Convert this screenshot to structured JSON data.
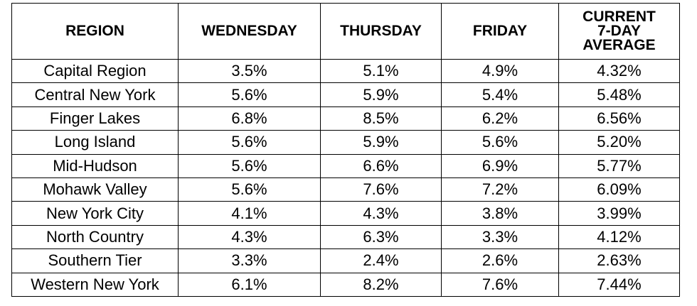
{
  "table": {
    "headers": [
      "REGION",
      "WEDNESDAY",
      "THURSDAY",
      "FRIDAY",
      "CURRENT\n7-DAY\nAVERAGE"
    ],
    "rows": [
      [
        "Capital Region",
        "3.5%",
        "5.1%",
        "4.9%",
        "4.32%"
      ],
      [
        "Central New York",
        "5.6%",
        "5.9%",
        "5.4%",
        "5.48%"
      ],
      [
        "Finger Lakes",
        "6.8%",
        "8.5%",
        "6.2%",
        "6.56%"
      ],
      [
        "Long Island",
        "5.6%",
        "5.9%",
        "5.6%",
        "5.20%"
      ],
      [
        "Mid-Hudson",
        "5.6%",
        "6.6%",
        "6.9%",
        "5.77%"
      ],
      [
        "Mohawk Valley",
        "5.6%",
        "7.6%",
        "7.2%",
        "6.09%"
      ],
      [
        "New York City",
        "4.1%",
        "4.3%",
        "3.8%",
        "3.99%"
      ],
      [
        "North Country",
        "4.3%",
        "6.3%",
        "3.3%",
        "4.12%"
      ],
      [
        "Southern Tier",
        "3.3%",
        "2.4%",
        "2.6%",
        "2.63%"
      ],
      [
        "Western New York",
        "6.1%",
        "8.2%",
        "7.6%",
        "7.44%"
      ]
    ]
  }
}
